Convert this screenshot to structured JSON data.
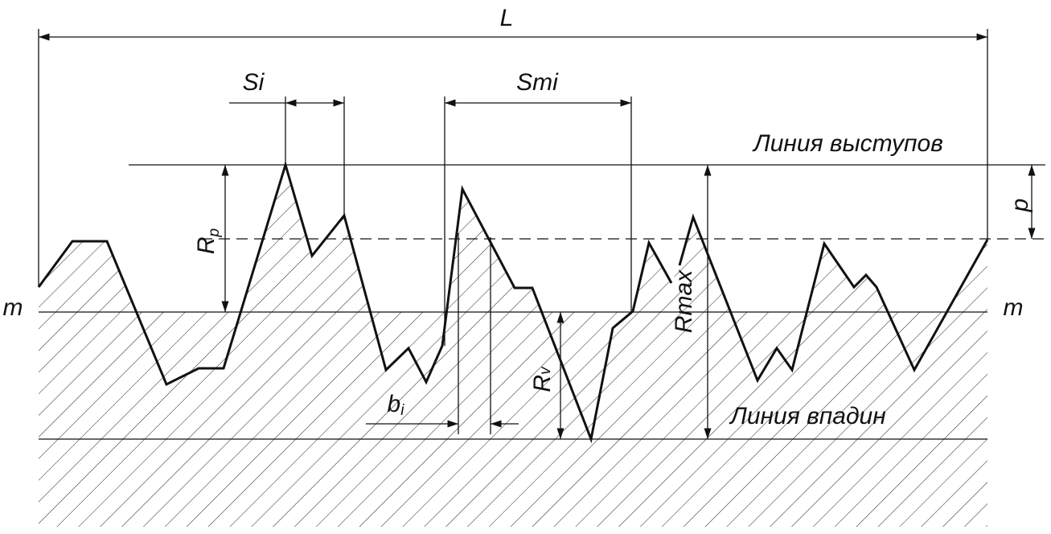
{
  "labels": {
    "length": "L",
    "step": "Si",
    "mean_step": "Smi",
    "peak_line": "Линия выступов",
    "valley_line": "Линия впадин",
    "mean_line_left": "m",
    "mean_line_right": "m",
    "peak_height": {
      "base": "R",
      "sub": "p"
    },
    "valley_depth": {
      "base": "R",
      "sub": "v"
    },
    "max_height": "Rmax",
    "level": "p",
    "bearing_length": {
      "base": "b",
      "sub": "i"
    }
  }
}
